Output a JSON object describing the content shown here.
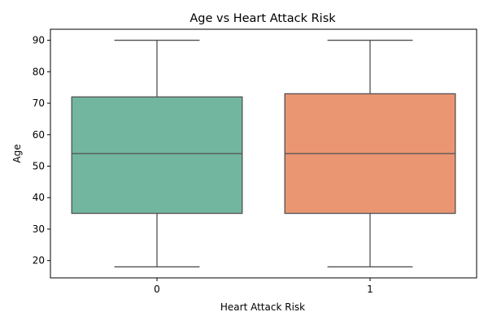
{
  "chart_data": {
    "type": "box",
    "title": "Age vs Heart Attack Risk",
    "xlabel": "Heart Attack Risk",
    "ylabel": "Age",
    "categories": [
      "0",
      "1"
    ],
    "ylim": [
      14.5,
      93.5
    ],
    "yticks": [
      20,
      30,
      40,
      50,
      60,
      70,
      80,
      90
    ],
    "grid": false,
    "boxes": [
      {
        "category": "0",
        "min": 18,
        "q1": 35,
        "median": 54,
        "q3": 72,
        "max": 90,
        "color": "#73b6a0"
      },
      {
        "category": "1",
        "min": 18,
        "q1": 35,
        "median": 54,
        "q3": 73,
        "max": 90,
        "color": "#ea9673"
      }
    ]
  }
}
